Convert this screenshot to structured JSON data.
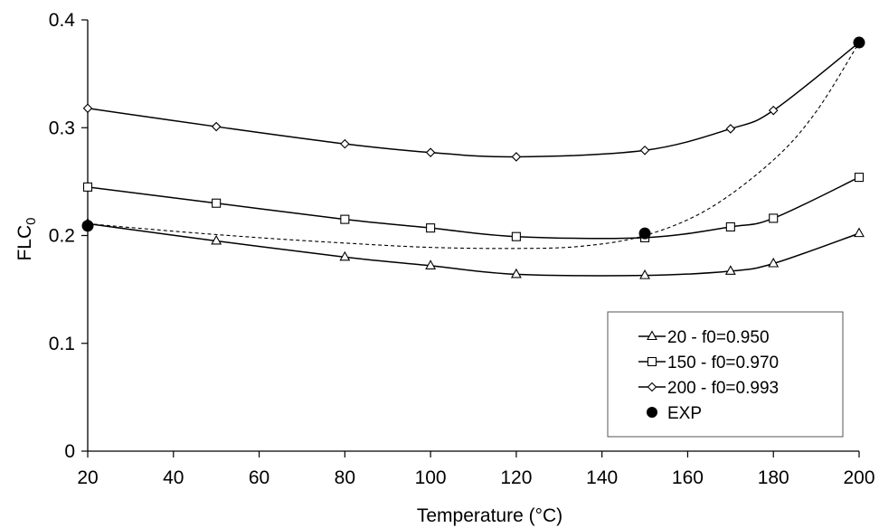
{
  "chart_data": {
    "type": "line",
    "title": "",
    "xlabel": "Temperature (°C)",
    "ylabel_main": "FLC",
    "ylabel_sub": "0",
    "x_categories": [
      20,
      40,
      60,
      80,
      100,
      120,
      140,
      160,
      180,
      200
    ],
    "xlim": [
      20,
      200
    ],
    "ylim": [
      0,
      0.4
    ],
    "y_ticks": [
      "0",
      "0.1",
      "0.2",
      "0.3",
      "0.4"
    ],
    "x_ticks": [
      "20",
      "40",
      "60",
      "80",
      "100",
      "120",
      "140",
      "160",
      "180",
      "200"
    ],
    "grid": false,
    "legend_position": "bottom-right",
    "series": [
      {
        "name": "20  -  f0=0.950",
        "marker": "triangle",
        "x": [
          20,
          50,
          80,
          100,
          120,
          150,
          170,
          180,
          200
        ],
        "y": [
          0.211,
          0.195,
          0.18,
          0.172,
          0.164,
          0.163,
          0.167,
          0.174,
          0.202
        ]
      },
      {
        "name": "150  -  f0=0.970",
        "marker": "square",
        "x": [
          20,
          50,
          80,
          100,
          120,
          150,
          170,
          180,
          200
        ],
        "y": [
          0.245,
          0.23,
          0.215,
          0.207,
          0.199,
          0.198,
          0.208,
          0.216,
          0.254
        ]
      },
      {
        "name": "200  -  f0=0.993",
        "marker": "diamond",
        "x": [
          20,
          50,
          80,
          100,
          120,
          150,
          170,
          180,
          200
        ],
        "y": [
          0.318,
          0.301,
          0.285,
          0.277,
          0.273,
          0.279,
          0.299,
          0.316,
          0.379
        ]
      }
    ],
    "exp": {
      "name": "EXP",
      "x": [
        20,
        150,
        200
      ],
      "y": [
        0.209,
        0.202,
        0.379
      ]
    },
    "fit_curve": {
      "x": [
        20,
        40,
        60,
        80,
        100,
        120,
        135,
        150,
        165,
        180,
        190,
        200
      ],
      "y": [
        0.211,
        0.204,
        0.198,
        0.193,
        0.189,
        0.188,
        0.19,
        0.2,
        0.225,
        0.27,
        0.315,
        0.379
      ]
    }
  }
}
